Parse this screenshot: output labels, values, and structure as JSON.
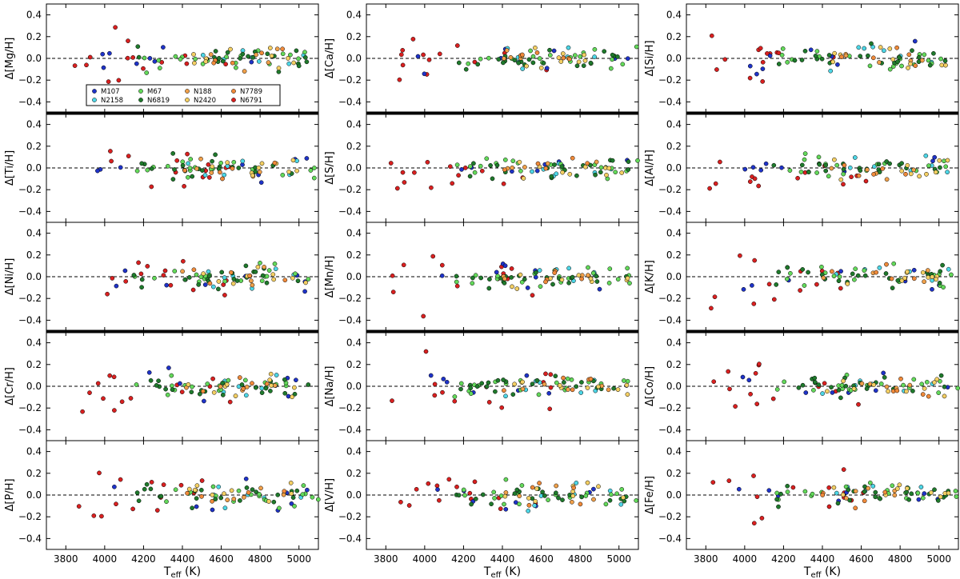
{
  "figure": {
    "xlabel": "T",
    "xlabel_sub": "eff",
    "xlabel_unit": " (K)",
    "colors": {
      "M107": "#1f33c8",
      "N2158": "#4dd6e6",
      "M67": "#63d95a",
      "N6819": "#1f7a2c",
      "N188": "#f0a04a",
      "N2420": "#f4cf63",
      "N7789": "#f08a3a",
      "N6791": "#d92020"
    },
    "thick_separators_after_rows": [
      0,
      2
    ]
  },
  "chart_data": {
    "type": "scatter",
    "xlim": [
      3700,
      5100
    ],
    "ylim": [
      -0.5,
      0.5
    ],
    "x_ticks": [
      3800,
      4000,
      4200,
      4400,
      4600,
      4800,
      5000
    ],
    "y_ticks": [
      -0.4,
      -0.2,
      0.0,
      0.2,
      0.4
    ],
    "y_tick_labels": [
      "−0.4",
      "−0.2",
      "0.0",
      "0.2",
      "0.4"
    ],
    "legend": {
      "placement": "lower-left of first panel",
      "entries": [
        {
          "key": "M107",
          "label": "M107"
        },
        {
          "key": "N2158",
          "label": "N2158"
        },
        {
          "key": "M67",
          "label": "M67"
        },
        {
          "key": "N6819",
          "label": "N6819"
        },
        {
          "key": "N188",
          "label": "N188"
        },
        {
          "key": "N2420",
          "label": "N2420"
        },
        {
          "key": "N7789",
          "label": "N7789"
        },
        {
          "key": "N6791",
          "label": "N6791"
        }
      ]
    },
    "panels": [
      {
        "element": "Mg",
        "ylabel": "Δ[Mg/H]",
        "seed": 11
      },
      {
        "element": "Ca",
        "ylabel": "Δ[Ca/H]",
        "seed": 23
      },
      {
        "element": "Si",
        "ylabel": "Δ[Si/H]",
        "seed": 37
      },
      {
        "element": "Ti",
        "ylabel": "Δ[Ti/H]",
        "seed": 41
      },
      {
        "element": "S",
        "ylabel": "Δ[S/H]",
        "seed": 53
      },
      {
        "element": "Al",
        "ylabel": "Δ[Al/H]",
        "seed": 67
      },
      {
        "element": "Ni",
        "ylabel": "Δ[Ni/H]",
        "seed": 71
      },
      {
        "element": "Mn",
        "ylabel": "Δ[Mn/H]",
        "seed": 83
      },
      {
        "element": "K",
        "ylabel": "Δ[K/H]",
        "seed": 97
      },
      {
        "element": "Cr",
        "ylabel": "Δ[Cr/H]",
        "seed": 101
      },
      {
        "element": "Na",
        "ylabel": "Δ[Na/H]",
        "seed": 113
      },
      {
        "element": "Co",
        "ylabel": "Δ[Co/H]",
        "seed": 127
      },
      {
        "element": "P",
        "ylabel": "Δ[P/H]",
        "seed": 131
      },
      {
        "element": "V",
        "ylabel": "Δ[V/H]",
        "seed": 149
      },
      {
        "element": "Fe",
        "ylabel": "Δ[Fe/H]",
        "seed": 151
      }
    ],
    "cluster_distributions": [
      {
        "key": "N6791",
        "count": 14,
        "teff_range": [
          3820,
          4650
        ],
        "spread": 0.12
      },
      {
        "key": "M107",
        "count": 8,
        "teff_range": [
          3950,
          5050
        ],
        "spread": 0.1
      },
      {
        "key": "N2158",
        "count": 7,
        "teff_range": [
          4400,
          5050
        ],
        "spread": 0.08
      },
      {
        "key": "M67",
        "count": 20,
        "teff_range": [
          4150,
          5100
        ],
        "spread": 0.07
      },
      {
        "key": "N6819",
        "count": 22,
        "teff_range": [
          4150,
          5050
        ],
        "spread": 0.07
      },
      {
        "key": "N188",
        "count": 5,
        "teff_range": [
          4400,
          4950
        ],
        "spread": 0.07
      },
      {
        "key": "N2420",
        "count": 10,
        "teff_range": [
          4400,
          5050
        ],
        "spread": 0.07
      },
      {
        "key": "N7789",
        "count": 5,
        "teff_range": [
          4400,
          4950
        ],
        "spread": 0.07
      }
    ]
  }
}
